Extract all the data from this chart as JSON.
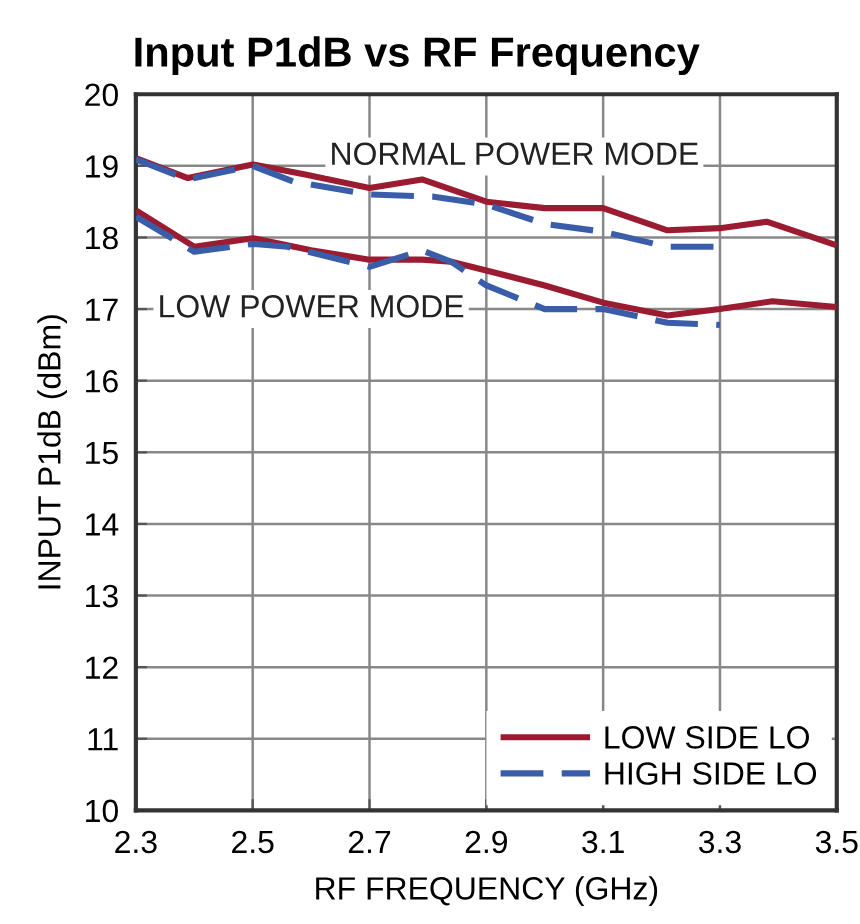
{
  "chart_data": {
    "type": "line",
    "title": "Input P1dB vs RF Frequency",
    "xlabel": "RF FREQUENCY (GHz)",
    "ylabel": "INPUT P1dB (dBm)",
    "xlim": [
      2.3,
      3.5
    ],
    "xticks": [
      2.3,
      2.5,
      2.7,
      2.9,
      3.1,
      3.3,
      3.5
    ],
    "ylim": [
      10,
      20
    ],
    "yticks": [
      10,
      11,
      12,
      13,
      14,
      15,
      16,
      17,
      18,
      19,
      20
    ],
    "grid": true,
    "legend": "bottom right",
    "marker": "none",
    "series": [
      {
        "name": "LOW SIDE LO",
        "color": "#9b1b30",
        "line_style": "solid",
        "x": [
          2.3,
          2.389,
          2.5,
          2.59,
          2.7,
          2.79,
          2.9,
          3.0,
          3.1,
          3.21,
          3.3,
          3.38,
          3.5
        ],
        "values": [
          19.11,
          18.83,
          19.02,
          18.88,
          18.69,
          18.81,
          18.5,
          18.41,
          18.41,
          18.1,
          18.13,
          18.22,
          17.89
        ]
      },
      {
        "name": "HIGH SIDE LO",
        "color": "#3a5daa",
        "line_style": "dashed",
        "x": [
          2.3,
          2.389,
          2.5,
          2.57,
          2.7,
          2.81,
          2.9,
          3.0,
          3.1,
          3.21,
          3.3
        ],
        "values": [
          19.09,
          18.81,
          19.0,
          18.78,
          18.6,
          18.57,
          18.46,
          18.19,
          18.08,
          17.87,
          17.87
        ]
      },
      {
        "color": "#9b1b30",
        "line_style": "solid",
        "x": [
          2.3,
          2.4,
          2.5,
          2.6,
          2.7,
          2.79,
          2.84,
          2.9,
          3.0,
          3.1,
          3.21,
          3.3,
          3.39,
          3.5
        ],
        "values": [
          18.38,
          17.87,
          17.99,
          17.82,
          17.69,
          17.69,
          17.66,
          17.54,
          17.33,
          17.09,
          16.91,
          17.0,
          17.11,
          17.03
        ]
      },
      {
        "color": "#3a5daa",
        "line_style": "dashed",
        "x": [
          2.3,
          2.4,
          2.5,
          2.56,
          2.7,
          2.79,
          2.84,
          2.9,
          3.0,
          3.1,
          3.21,
          3.3
        ],
        "values": [
          18.29,
          17.8,
          17.91,
          17.87,
          17.59,
          17.82,
          17.66,
          17.33,
          17.0,
          17.0,
          16.81,
          16.78
        ]
      }
    ],
    "annotations": [
      "NORMAL POWER MODE",
      "LOW POWER MODE"
    ]
  }
}
